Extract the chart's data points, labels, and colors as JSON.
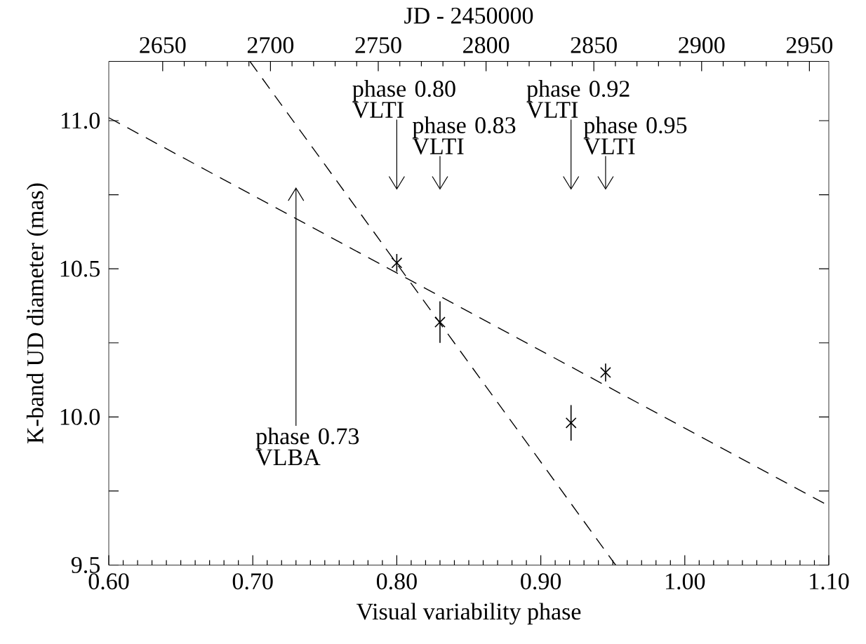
{
  "chart_data": {
    "type": "scatter",
    "xlabel": "Visual variability phase",
    "ylabel": "K-band UD diameter (mas)",
    "x2label": "JD - 2450000",
    "xlim": [
      0.6,
      1.1
    ],
    "xticks": [
      {
        "value": 0.6,
        "label": "0.60"
      },
      {
        "value": 0.7,
        "label": "0.70"
      },
      {
        "value": 0.8,
        "label": "0.80"
      },
      {
        "value": 0.9,
        "label": "0.90"
      },
      {
        "value": 1.0,
        "label": "1.00"
      },
      {
        "value": 1.1,
        "label": "1.10"
      }
    ],
    "ylim": [
      9.5,
      11.2
    ],
    "yticks": [
      {
        "value": 9.5,
        "label": "9.5"
      },
      {
        "value": 9.75,
        "label": null
      },
      {
        "value": 10.0,
        "label": "10.0"
      },
      {
        "value": 10.25,
        "label": null
      },
      {
        "value": 10.5,
        "label": "10.5"
      },
      {
        "value": 10.75,
        "label": null
      },
      {
        "value": 11.0,
        "label": "11.0"
      }
    ],
    "x2lim": [
      2625,
      2959
    ],
    "x2ticks": [
      2650,
      2700,
      2750,
      2800,
      2850,
      2900,
      2950
    ],
    "series": [
      {
        "x": [
          0.8,
          0.83,
          0.921,
          0.945
        ],
        "values": [
          10.52,
          10.32,
          9.98,
          10.15
        ],
        "errors": [
          0.03,
          0.07,
          0.06,
          0.03
        ],
        "color": "#000000",
        "marker": "cross"
      },
      {
        "type": "line",
        "x": [
          0.698,
          0.952
        ],
        "values": [
          11.2,
          9.5
        ],
        "color": "#000000",
        "line_style": "dashed",
        "marker": "none"
      },
      {
        "type": "line",
        "x": [
          0.6,
          1.1
        ],
        "values": [
          11.01,
          9.7
        ],
        "color": "#000000",
        "line_style": "dashed",
        "marker": "none"
      }
    ],
    "annotations": [
      "phase 0.80 VLTI",
      "phase 0.83 VLTI",
      "phase 0.92 VLTI",
      "phase 0.95 VLTI",
      "phase 0.73 VLBA"
    ]
  }
}
